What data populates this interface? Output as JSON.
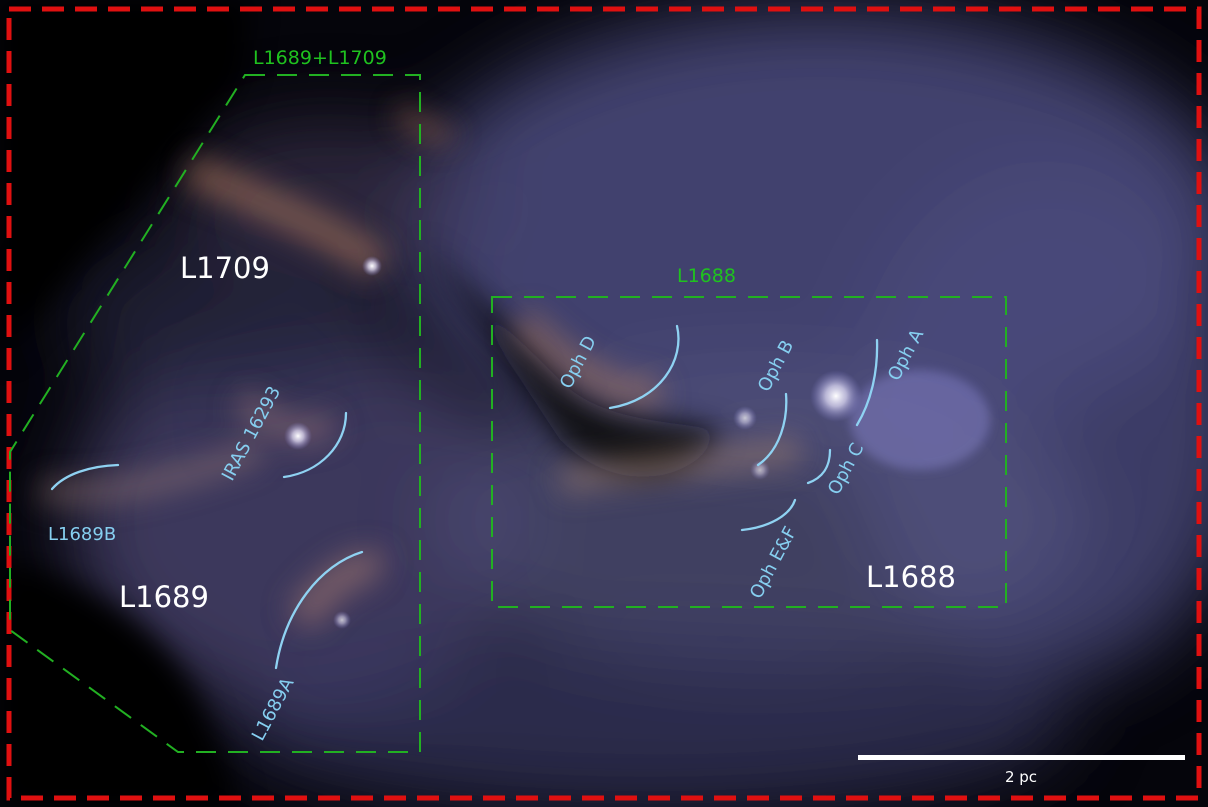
{
  "regions": {
    "combined": "L1689+L1709",
    "l1688_box": "L1688",
    "l1709": "L1709",
    "l1689": "L1689",
    "l1688": "L1688"
  },
  "cores": {
    "oph_d": "Oph D",
    "oph_b": "Oph B",
    "oph_a": "Oph A",
    "oph_c": "Oph C",
    "oph_ef": "Oph E&F",
    "iras": "IRAS 16293",
    "l1689b": "L1689B",
    "l1689a": "L1689A"
  },
  "scale_bar": {
    "label": "2 pc"
  },
  "colors": {
    "frame": "#e01010",
    "region_boxes": "#22b022",
    "core_labels": "#86cff0",
    "region_labels": "#ffffff",
    "sky_background": "#05050b",
    "emission": "#5a5a8f"
  }
}
